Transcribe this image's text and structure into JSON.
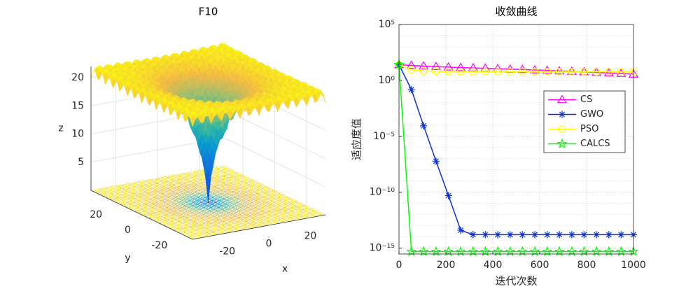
{
  "chart_data": [
    {
      "type": "surface3d",
      "title": "F10",
      "xlabel": "x",
      "ylabel": "y",
      "zlabel": "z",
      "xlim": [
        -32,
        32
      ],
      "ylim": [
        -32,
        32
      ],
      "zlim": [
        0,
        22
      ],
      "xticks": [
        -20,
        0,
        20
      ],
      "yticks": [
        -20,
        0,
        20
      ],
      "zticks": [
        5,
        10,
        15,
        20
      ],
      "grid": true
    },
    {
      "type": "line",
      "title": "收敛曲线",
      "xlabel": "迭代次数",
      "ylabel": "适应度值",
      "log_y": true,
      "grid": true,
      "legend": "northeast",
      "xlim": [
        0,
        1000
      ],
      "xticks": [
        0,
        200,
        400,
        600,
        800,
        1000
      ],
      "ylim": [
        3e-16,
        100000
      ],
      "yticks": [
        {
          "value": 100000,
          "label": "10⁵"
        },
        {
          "value": 1,
          "label": "10⁰"
        },
        {
          "value": 1e-05,
          "label": "10⁻⁵"
        },
        {
          "value": 1e-10,
          "label": "10⁻¹⁰"
        },
        {
          "value": 1e-15,
          "label": "10⁻¹⁵"
        }
      ],
      "x": [
        0,
        53,
        105,
        158,
        211,
        263,
        316,
        368,
        421,
        474,
        526,
        579,
        632,
        684,
        737,
        789,
        842,
        895,
        947,
        1000
      ],
      "series": [
        {
          "name": "CS",
          "color": "#ff00ff",
          "marker": "triangle",
          "values": [
            25,
            22,
            19,
            17,
            15.5,
            14,
            13,
            12,
            11,
            10,
            9.3,
            8.5,
            7.8,
            7,
            6.4,
            5.8,
            5.2,
            4.6,
            4.1,
            3.6
          ]
        },
        {
          "name": "GWO",
          "color": "#0a2fd6",
          "marker": "asterisk",
          "values": [
            25,
            0.15,
            8.7e-05,
            6e-08,
            5e-11,
            4e-14,
            1.6e-14,
            1.6e-14,
            1.6e-14,
            1.6e-14,
            1.6e-14,
            1.6e-14,
            1.6e-14,
            1.6e-14,
            1.6e-14,
            1.6e-14,
            1.6e-14,
            1.6e-14,
            1.6e-14,
            1.6e-14
          ]
        },
        {
          "name": "PSO",
          "color": "#ffff00",
          "marker": "circle",
          "values": [
            25,
            9,
            7,
            6.5,
            6.3,
            6.2,
            6.1,
            6,
            6,
            6,
            6,
            6,
            6,
            6,
            6,
            6,
            6,
            6,
            5.8,
            5.7
          ]
        },
        {
          "name": "CALCS",
          "color": "#00ff00",
          "marker": "pentagram",
          "values": [
            25,
            5e-16,
            5e-16,
            5e-16,
            5e-16,
            5e-16,
            5e-16,
            5e-16,
            5e-16,
            5e-16,
            5e-16,
            5e-16,
            5e-16,
            5e-16,
            5e-16,
            5e-16,
            5e-16,
            5e-16,
            5e-16,
            5e-16
          ]
        }
      ]
    }
  ]
}
